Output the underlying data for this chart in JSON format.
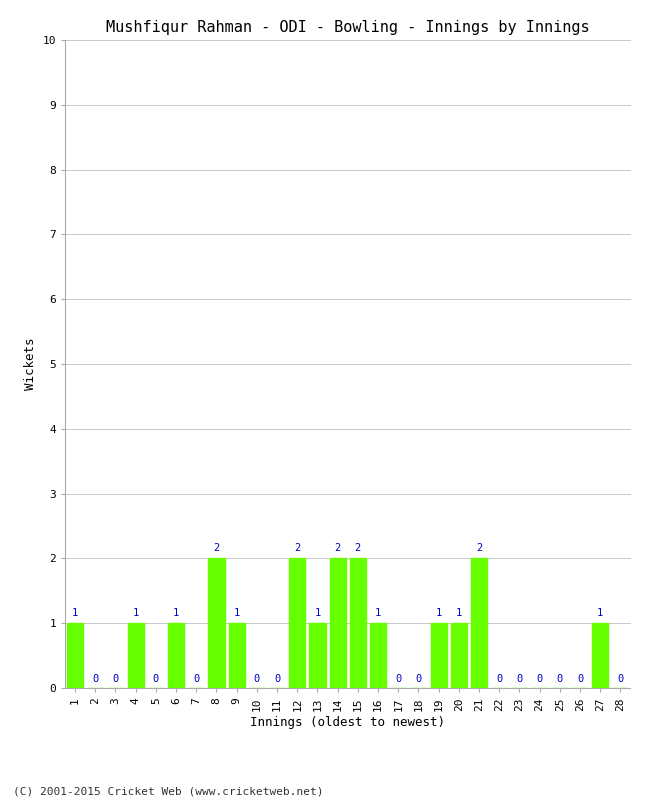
{
  "title": "Mushfiqur Rahman - ODI - Bowling - Innings by Innings",
  "xlabel": "Innings (oldest to newest)",
  "ylabel": "Wickets",
  "copyright": "(C) 2001-2015 Cricket Web (www.cricketweb.net)",
  "innings": [
    1,
    2,
    3,
    4,
    5,
    6,
    7,
    8,
    9,
    10,
    11,
    12,
    13,
    14,
    15,
    16,
    17,
    18,
    19,
    20,
    21,
    22,
    23,
    24,
    25,
    26,
    27,
    28
  ],
  "wickets": [
    1,
    0,
    0,
    1,
    0,
    1,
    0,
    2,
    1,
    0,
    0,
    2,
    1,
    2,
    2,
    1,
    0,
    0,
    1,
    1,
    2,
    0,
    0,
    0,
    0,
    0,
    1,
    0
  ],
  "bar_color": "#66ff00",
  "label_color": "#0000cc",
  "background_color": "#ffffff",
  "grid_color": "#c8c8c8",
  "ylim": [
    0,
    10
  ],
  "yticks": [
    0,
    1,
    2,
    3,
    4,
    5,
    6,
    7,
    8,
    9,
    10
  ],
  "title_fontsize": 11,
  "label_fontsize": 9,
  "tick_fontsize": 8,
  "annotation_fontsize": 7.5,
  "copyright_fontsize": 8
}
